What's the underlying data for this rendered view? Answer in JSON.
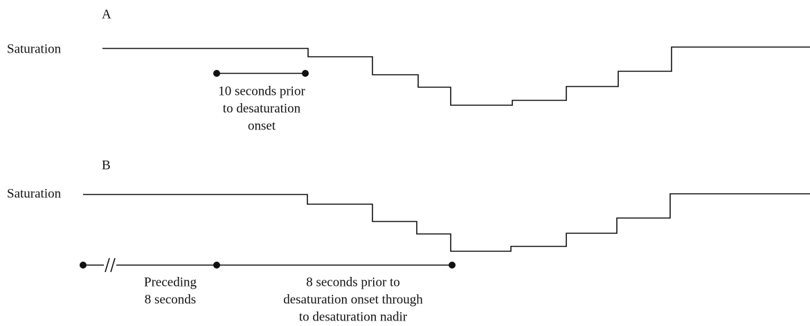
{
  "panels": [
    {
      "label": "A",
      "axis_label": "Saturation",
      "annotations": [
        {
          "lines": [
            "10 seconds prior",
            "to desaturation",
            "onset"
          ]
        }
      ]
    },
    {
      "label": "B",
      "axis_label": "Saturation",
      "annotations": [
        {
          "lines": [
            "Preceding",
            "8 seconds"
          ]
        },
        {
          "lines": [
            "8 seconds prior to",
            "desaturation onset through",
            "to desaturation nadir"
          ]
        }
      ]
    }
  ]
}
